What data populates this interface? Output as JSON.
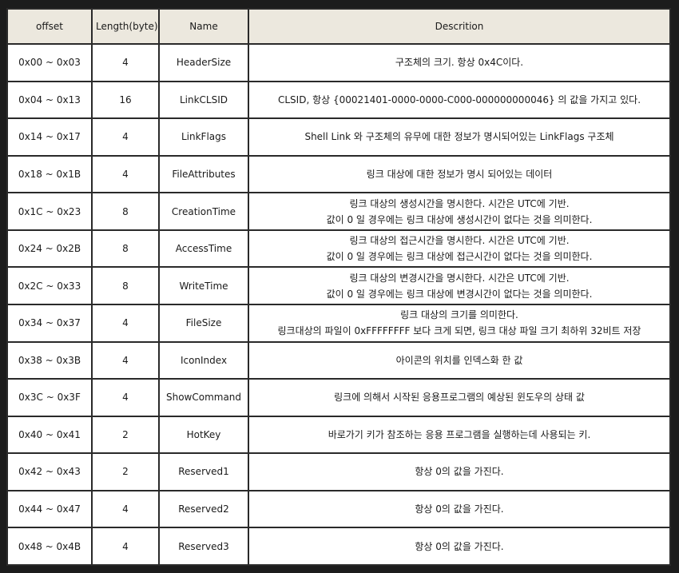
{
  "table": {
    "headers": {
      "offset": "offset",
      "length": "Length(byte)",
      "name": "Name",
      "description": "Descrition"
    },
    "rows": [
      {
        "offset": "0x00 ~ 0x03",
        "length": "4",
        "name": "HeaderSize",
        "desc": [
          "구조체의 크기. 항상 0x4C이다."
        ]
      },
      {
        "offset": "0x04 ~ 0x13",
        "length": "16",
        "name": "LinkCLSID",
        "desc": [
          "CLSID, 항상 {00021401-0000-0000-C000-000000000046} 의 값을 가지고 있다."
        ]
      },
      {
        "offset": "0x14 ~ 0x17",
        "length": "4",
        "name": "LinkFlags",
        "desc": [
          "Shell Link 와 구조체의 유무에 대한 정보가 명시되어있는 LinkFlags 구조체"
        ]
      },
      {
        "offset": "0x18 ~ 0x1B",
        "length": "4",
        "name": "FileAttributes",
        "desc": [
          "링크 대상에 대한 정보가 명시 되어있는 데이터"
        ]
      },
      {
        "offset": "0x1C ~ 0x23",
        "length": "8",
        "name": "CreationTime",
        "desc": [
          "링크 대상의 생성시간을 명시한다. 시간은 UTC에 기반.",
          "값이 0 일 경우에는 링크 대상에 생성시간이 없다는 것을 의미한다."
        ]
      },
      {
        "offset": "0x24 ~ 0x2B",
        "length": "8",
        "name": "AccessTime",
        "desc": [
          "링크 대상의 접근시간을 명시한다. 시간은 UTC에 기반.",
          "값이 0 일 경우에는 링크 대상에 접근시간이 없다는 것을 의미한다."
        ]
      },
      {
        "offset": "0x2C ~ 0x33",
        "length": "8",
        "name": "WriteTime",
        "desc": [
          "링크 대상의 변경시간을 명시한다. 시간은 UTC에 기반.",
          "값이 0 일 경우에는 링크 대상에 변경시간이 없다는 것을 의미한다."
        ]
      },
      {
        "offset": "0x34 ~ 0x37",
        "length": "4",
        "name": "FileSize",
        "desc": [
          "링크 대상의 크기를 의미한다.",
          "링크대상의 파일이 0xFFFFFFFF 보다 크게 되면, 링크 대상 파일 크기 최하위 32비트 저장"
        ]
      },
      {
        "offset": "0x38 ~ 0x3B",
        "length": "4",
        "name": "IconIndex",
        "desc": [
          "아이콘의 위치를 인덱스화 한 값"
        ]
      },
      {
        "offset": "0x3C ~ 0x3F",
        "length": "4",
        "name": "ShowCommand",
        "desc": [
          "링크에 의해서 시작된 응용프로그램의 예상된 윈도우의 상태 값"
        ]
      },
      {
        "offset": "0x40 ~ 0x41",
        "length": "2",
        "name": "HotKey",
        "desc": [
          "바로가기 키가 참조하는 응용 프로그램을 실행하는데 사용되는 키."
        ]
      },
      {
        "offset": "0x42 ~ 0x43",
        "length": "2",
        "name": "Reserved1",
        "desc": [
          "항상 0의 값을 가진다."
        ]
      },
      {
        "offset": "0x44 ~ 0x47",
        "length": "4",
        "name": "Reserved2",
        "desc": [
          "항상 0의 값을 가진다."
        ]
      },
      {
        "offset": "0x48 ~ 0x4B",
        "length": "4",
        "name": "Reserved3",
        "desc": [
          "항상 0의 값을 가진다."
        ]
      }
    ]
  }
}
